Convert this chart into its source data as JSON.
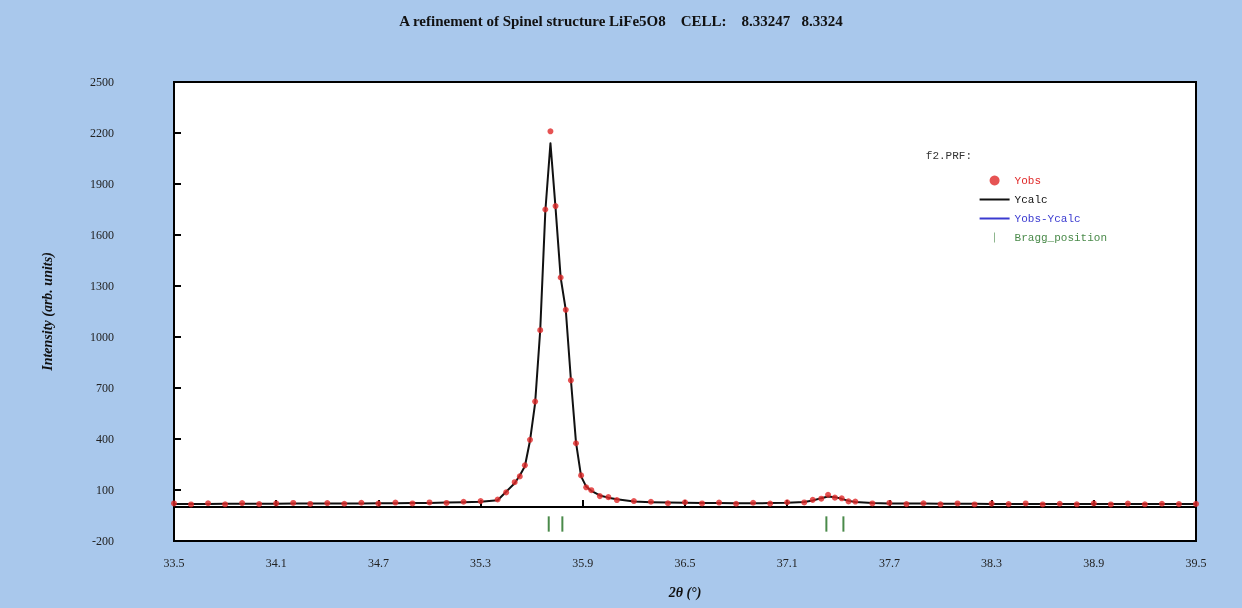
{
  "chart_data": {
    "type": "scatter",
    "title": "A refinement of Spinel structure LiFe5O8    CELL:    8.33247   8.3324",
    "xlabel": "2θ (°)",
    "ylabel": "Intensity (arb. units)",
    "legend_title": "f2.PRF:",
    "legend": "top right",
    "grid": false,
    "x": [
      33.5,
      33.6,
      33.7,
      33.8,
      33.9,
      34.0,
      34.1,
      34.2,
      34.3,
      34.4,
      34.5,
      34.6,
      34.7,
      34.8,
      34.9,
      35.0,
      35.1,
      35.2,
      35.3,
      35.4,
      35.45,
      35.5,
      35.53,
      35.56,
      35.59,
      35.62,
      35.65,
      35.68,
      35.71,
      35.74,
      35.77,
      35.8,
      35.83,
      35.86,
      35.89,
      35.92,
      35.95,
      36.0,
      36.05,
      36.1,
      36.2,
      36.3,
      36.4,
      36.5,
      36.6,
      36.7,
      36.8,
      36.9,
      37.0,
      37.1,
      37.2,
      37.25,
      37.3,
      37.34,
      37.38,
      37.42,
      37.46,
      37.5,
      37.6,
      37.7,
      37.8,
      37.9,
      38.0,
      38.1,
      38.2,
      38.3,
      38.4,
      38.5,
      38.6,
      38.7,
      38.8,
      38.9,
      39.0,
      39.1,
      39.2,
      39.3,
      39.4,
      39.5
    ],
    "xlim": [
      33.5,
      39.5
    ],
    "xticks": [
      33.5,
      34.1,
      34.7,
      35.3,
      35.9,
      36.5,
      37.1,
      37.7,
      38.3,
      38.9,
      39.5
    ],
    "ylim": [
      -200,
      2500
    ],
    "yticks": [
      -200,
      100,
      400,
      700,
      1000,
      1300,
      1600,
      1900,
      2200,
      2500
    ],
    "series": [
      {
        "name": "Yobs",
        "marker": "circle",
        "color": "#e02828",
        "values": [
          21,
          15,
          22,
          16,
          23,
          17,
          21,
          24,
          18,
          23,
          19,
          25,
          20,
          26,
          21,
          27,
          24,
          31,
          35,
          44,
          86,
          146,
          180,
          245,
          395,
          620,
          1040,
          1750,
          2210,
          1770,
          1350,
          1160,
          745,
          375,
          186,
          116,
          99,
          64,
          58,
          41,
          35,
          31,
          22,
          28,
          21,
          26,
          19,
          25,
          20,
          28,
          27,
          42,
          49,
          72,
          55,
          51,
          33,
          32,
          21,
          24,
          17,
          22,
          16,
          21,
          15,
          20,
          17,
          21,
          15,
          19,
          16,
          21,
          15,
          20,
          16,
          19,
          17,
          18
        ]
      },
      {
        "name": "Ycalc",
        "type": "line",
        "marker": "none",
        "color": "#111111",
        "values": [
          18,
          18,
          18,
          19,
          19,
          19,
          19,
          20,
          20,
          20,
          21,
          21,
          22,
          22,
          23,
          24,
          26,
          28,
          31,
          40,
          90,
          140,
          185,
          240,
          390,
          610,
          1040,
          1740,
          2140,
          1760,
          1350,
          1160,
          750,
          380,
          180,
          120,
          95,
          68,
          55,
          45,
          32,
          28,
          26,
          25,
          24,
          23,
          22,
          22,
          23,
          25,
          30,
          38,
          52,
          62,
          58,
          48,
          36,
          30,
          24,
          21,
          20,
          20,
          19,
          19,
          19,
          18,
          18,
          18,
          18,
          18,
          18,
          18,
          18,
          18,
          18,
          18,
          18,
          18
        ]
      },
      {
        "name": "Yobs-Ycalc",
        "type": "line",
        "marker": "none",
        "color": "#3a3ad0",
        "values": [
          null,
          null,
          null,
          null,
          null,
          null,
          null,
          null,
          null,
          null,
          null,
          null,
          null,
          null,
          null,
          null,
          null,
          null,
          null,
          null,
          null,
          null,
          null,
          null,
          null,
          null,
          null,
          null,
          null,
          null,
          null,
          null,
          null,
          null,
          null,
          null,
          null,
          null,
          null,
          null,
          null,
          null,
          null,
          null,
          null,
          null,
          null,
          null,
          null,
          null,
          null,
          null,
          null,
          null,
          null,
          null,
          null,
          null,
          null,
          null,
          null,
          null,
          null,
          null,
          null,
          null,
          null,
          null,
          null,
          null,
          null,
          null,
          null,
          null,
          null,
          null,
          null,
          null
        ]
      },
      {
        "name": "Bragg_position",
        "type": "bar",
        "color": "#4a8a4a",
        "x": [
          35.7,
          35.78,
          37.33,
          37.43
        ],
        "base": [
          -145,
          -145,
          -145,
          -145
        ],
        "values": [
          90,
          90,
          90,
          90
        ]
      }
    ]
  }
}
